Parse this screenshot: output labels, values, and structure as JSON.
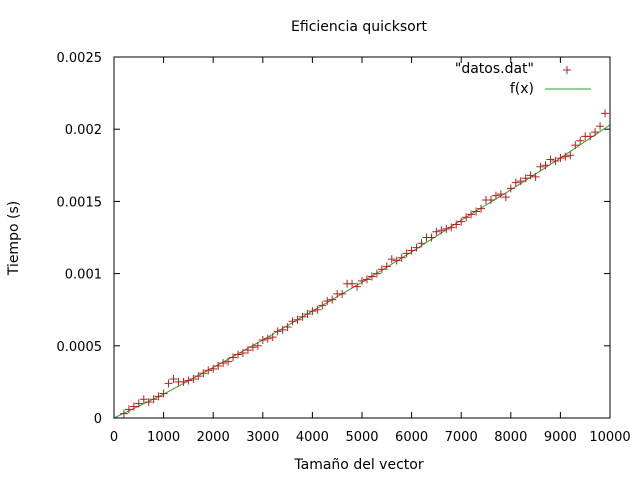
{
  "chart_data": {
    "type": "scatter",
    "title": "Eficiencia quicksort",
    "xlabel": "Tamaño del vector",
    "ylabel": "Tiempo (s)",
    "xlim": [
      0,
      10000
    ],
    "ylim": [
      0,
      0.0025
    ],
    "x_ticks": [
      "0",
      "1000",
      "2000",
      "3000",
      "4000",
      "5000",
      "6000",
      "7000",
      "8000",
      "9000",
      "10000"
    ],
    "y_ticks": [
      "0",
      "0.0005",
      "0.001",
      "0.0015",
      "0.002",
      "0.0025"
    ],
    "legend_position": "top-right",
    "grid": false,
    "series": [
      {
        "name": "\"datos.dat\"",
        "kind": "points",
        "marker": "+",
        "color": "#b22222",
        "x": [
          200,
          300,
          400,
          500,
          600,
          700,
          800,
          900,
          1000,
          1100,
          1200,
          1300,
          1400,
          1500,
          1600,
          1700,
          1800,
          1900,
          2000,
          2100,
          2200,
          2300,
          2400,
          2500,
          2600,
          2700,
          2800,
          2900,
          3000,
          3100,
          3200,
          3300,
          3400,
          3500,
          3600,
          3700,
          3800,
          3900,
          4000,
          4100,
          4200,
          4300,
          4400,
          4500,
          4600,
          4700,
          4800,
          4900,
          5000,
          5100,
          5200,
          5300,
          5400,
          5500,
          5600,
          5700,
          5800,
          5900,
          6000,
          6100,
          6200,
          6300,
          6400,
          6500,
          6600,
          6700,
          6800,
          6900,
          7000,
          7100,
          7200,
          7300,
          7400,
          7500,
          7600,
          7700,
          7800,
          7900,
          8000,
          8100,
          8200,
          8300,
          8400,
          8500,
          8600,
          8700,
          8800,
          8900,
          9000,
          9100,
          9200,
          9300,
          9400,
          9500,
          9600,
          9700,
          9800,
          9900
        ],
        "y": [
          3e-05,
          6e-05,
          8e-05,
          0.0001,
          0.00013,
          0.00011,
          0.00013,
          0.00015,
          0.00017,
          0.00024,
          0.00027,
          0.00025,
          0.00025,
          0.00026,
          0.00027,
          0.00029,
          0.00031,
          0.00033,
          0.00034,
          0.00036,
          0.00038,
          0.00039,
          0.00042,
          0.00044,
          0.00045,
          0.00047,
          0.00049,
          0.0005,
          0.00054,
          0.00055,
          0.00056,
          0.0006,
          0.00061,
          0.00063,
          0.00067,
          0.00068,
          0.0007,
          0.00072,
          0.00074,
          0.00075,
          0.00078,
          0.00081,
          0.00082,
          0.00086,
          0.00086,
          0.00093,
          0.00093,
          0.00091,
          0.00095,
          0.00096,
          0.00098,
          0.001,
          0.00103,
          0.00105,
          0.0011,
          0.00109,
          0.00111,
          0.00114,
          0.00116,
          0.00118,
          0.00121,
          0.00125,
          0.00125,
          0.00129,
          0.0013,
          0.00131,
          0.00132,
          0.00134,
          0.00136,
          0.00139,
          0.00141,
          0.00143,
          0.00145,
          0.00151,
          0.00151,
          0.00154,
          0.00155,
          0.00153,
          0.00159,
          0.00163,
          0.00164,
          0.00166,
          0.00168,
          0.00167,
          0.00174,
          0.00175,
          0.00179,
          0.00178,
          0.0018,
          0.00181,
          0.00182,
          0.00189,
          0.00192,
          0.00195,
          0.00195,
          0.00198,
          0.00202,
          0.00211
        ]
      },
      {
        "name": "f(x)",
        "kind": "line",
        "color": "#2ca02c",
        "x": [
          0,
          1000,
          2000,
          3000,
          4000,
          5000,
          6000,
          7000,
          8000,
          9000,
          10000
        ],
        "y": [
          0.0,
          0.000165,
          0.00035,
          0.00054,
          0.00074,
          0.00094,
          0.00115,
          0.00137,
          0.00158,
          0.0018,
          0.00203
        ]
      }
    ]
  }
}
